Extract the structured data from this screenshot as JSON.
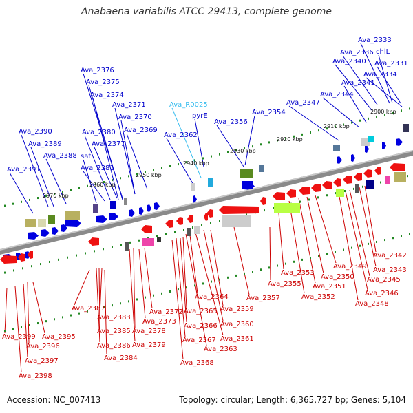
{
  "title": "Anabaena variabilis ATCC 29413, complete genome",
  "footer": {
    "accession": "Accession: NC_007413",
    "summary": "Topology: circular; Length: 6,365,727 bp; Genes: 5,104"
  },
  "colors": {
    "forward_label": "#0000cc",
    "reverse_label": "#cc0000",
    "rna_label": "#33bbee",
    "backbone": "#888888",
    "tick": "#228822"
  },
  "scale": {
    "ticks": [
      "2970 kbp",
      "2960 kbp",
      "2950 kbp",
      "2940 kbp",
      "2930 kbp",
      "2920 kbp",
      "2910 kbp",
      "2900 kbp"
    ]
  },
  "forward_labels": [
    "Ava_2333",
    "chlL",
    "Ava_2336",
    "Ava_2331",
    "Ava_2340",
    "Ava_2334",
    "Ava_2341",
    "Ava_2344",
    "Ava_2347",
    "Ava_2354",
    "Ava_2356",
    "pyrE",
    "Ava_R0025",
    "Ava_2362",
    "Ava_2376",
    "Ava_2375",
    "Ava_2374",
    "Ava_2371",
    "Ava_2370",
    "Ava_2369",
    "Ava_2390",
    "Ava_2380",
    "Ava_2389",
    "Ava_2377",
    "Ava_2388",
    "sat",
    "Ava_2381",
    "Ava_2391"
  ],
  "reverse_labels": [
    "Ava_2342",
    "Ava_2343",
    "Ava_2345",
    "Ava_2346",
    "Ava_2348",
    "Ava_2349",
    "Ava_2350",
    "Ava_2351",
    "Ava_2352",
    "Ava_2353",
    "Ava_2355",
    "Ava_2357",
    "Ava_2359",
    "Ava_2360",
    "Ava_2361",
    "Ava_2363",
    "Ava_2364",
    "Ava_2365",
    "Ava_2366",
    "Ava_2367",
    "Ava_2368",
    "Ava_2372",
    "Ava_2373",
    "Ava_2378",
    "Ava_2379",
    "Ava_2383",
    "Ava_2385",
    "Ava_2386",
    "Ava_2384",
    "Ava_2387",
    "Ava_2395",
    "Ava_2396",
    "Ava_2397",
    "Ava_2398",
    "Ava_2399"
  ]
}
